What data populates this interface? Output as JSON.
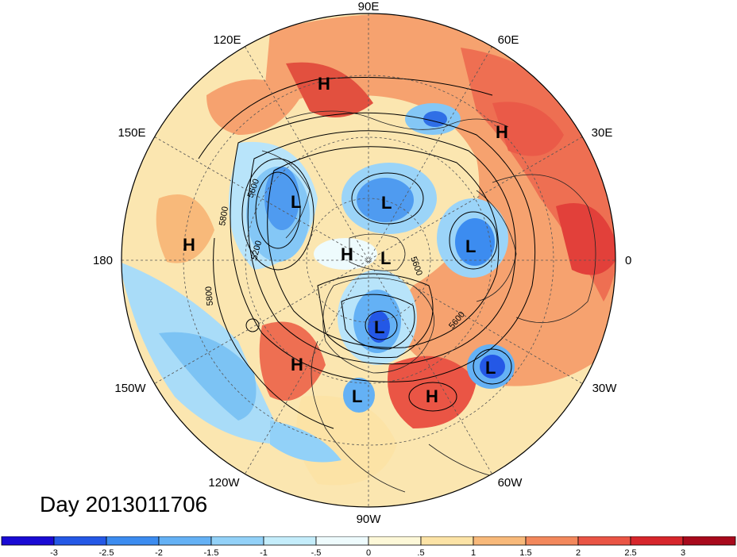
{
  "title": "Day 2013011706",
  "longitude_labels": [
    "90E",
    "60E",
    "30E",
    "0",
    "30W",
    "60W",
    "90W",
    "120W",
    "150W",
    "180",
    "150E",
    "120E"
  ],
  "pressure_centers": [
    {
      "type": "H",
      "name": "h-east-siberia"
    },
    {
      "type": "H",
      "name": "h-europe"
    },
    {
      "type": "L",
      "name": "l-kamchatka"
    },
    {
      "type": "L",
      "name": "l-laptev"
    },
    {
      "type": "L",
      "name": "l-scandinavia"
    },
    {
      "type": "H",
      "name": "h-pacific-west"
    },
    {
      "type": "H",
      "name": "h-alaska"
    },
    {
      "type": "L",
      "name": "l-arctic"
    },
    {
      "type": "L",
      "name": "l-baffin"
    },
    {
      "type": "L",
      "name": "l-atlantic"
    },
    {
      "type": "H",
      "name": "h-west-us"
    },
    {
      "type": "L",
      "name": "l-east-us"
    },
    {
      "type": "H",
      "name": "h-subtropical-atlantic"
    }
  ],
  "contour_labels": [
    "5600",
    "5800",
    "5200",
    "5800",
    "5600",
    "5600"
  ],
  "colorbar": {
    "colors": [
      "#1a0ad4",
      "#2458e6",
      "#3c8cf0",
      "#64b1f5",
      "#92d1f8",
      "#c4edfb",
      "#eefbfd",
      "#fdf8d8",
      "#fce3a6",
      "#f8b97a",
      "#f3885c",
      "#ea5545",
      "#d7262c",
      "#a8091c"
    ],
    "labels": [
      "-3",
      "-2.5",
      "-2",
      "-1.5",
      "-1",
      "-.5",
      "0",
      ".5",
      "1",
      "1.5",
      "2",
      "2.5",
      "3"
    ]
  }
}
